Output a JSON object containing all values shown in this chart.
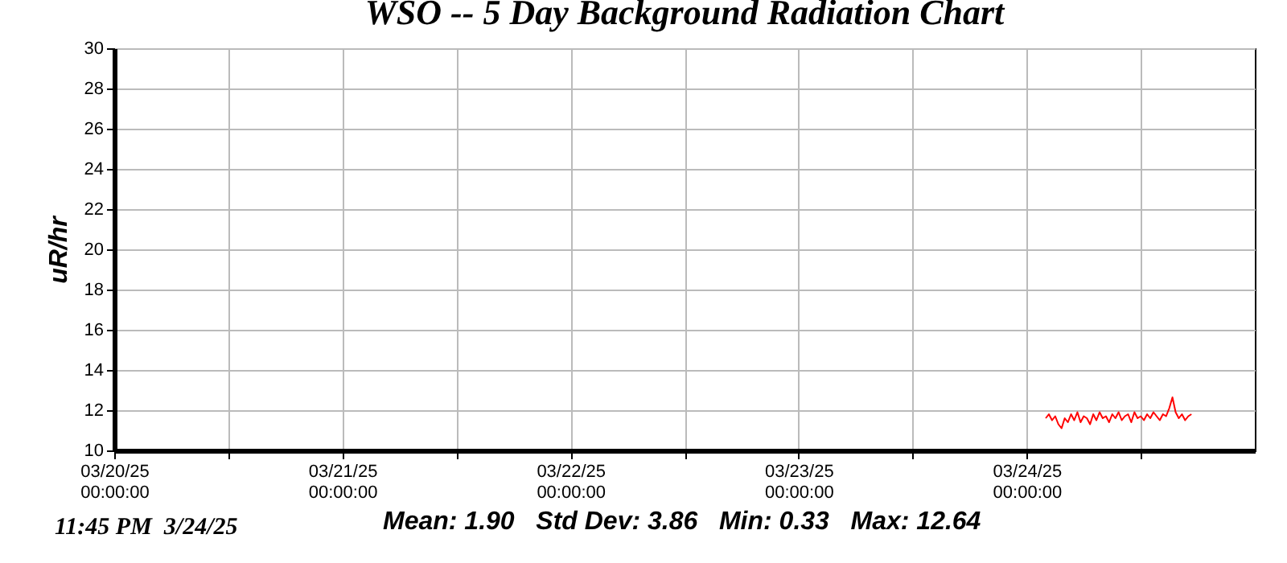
{
  "chart_data": {
    "type": "line",
    "title": "WSO -- 5 Day Background Radiation Chart",
    "ylabel": "uR/hr",
    "annotations": [
      "11:45 PM  3/24/25",
      "Mean: 1.90   Std Dev: 3.86   Min: 0.33   Max: 12.64"
    ],
    "x": [
      "--03-24T02:00",
      "--03-24T02:20",
      "--03-24T02:40",
      "--03-24T03:00",
      "--03-24T03:20",
      "--03-24T03:40",
      "--03-24T04:00",
      "--03-24T04:20",
      "--03-24T04:40",
      "--03-24T05:00",
      "--03-24T05:20",
      "--03-24T05:40",
      "--03-24T06:00",
      "--03-24T06:20",
      "--03-24T06:40",
      "--03-24T07:00",
      "--03-24T07:20",
      "--03-24T07:40",
      "--03-24T08:00",
      "--03-24T08:20",
      "--03-24T08:40",
      "--03-24T09:00",
      "--03-24T09:20",
      "--03-24T09:40",
      "--03-24T10:00",
      "--03-24T10:20",
      "--03-24T10:40",
      "--03-24T11:00",
      "--03-24T11:20",
      "--03-24T11:40",
      "--03-24T12:00",
      "--03-24T12:20",
      "--03-24T12:40",
      "--03-24T13:00",
      "--03-24T13:20",
      "--03-24T13:40",
      "--03-24T14:00",
      "--03-24T14:20",
      "--03-24T14:40",
      "--03-24T15:00",
      "--03-24T15:20",
      "--03-24T15:40",
      "--03-24T16:00",
      "--03-24T16:20",
      "--03-24T16:40",
      "--03-24T17:00",
      "--03-24T17:20"
    ],
    "series": [
      {
        "color": "#ff0000",
        "values": [
          11.6,
          11.8,
          11.5,
          11.7,
          11.3,
          11.1,
          11.6,
          11.4,
          11.8,
          11.5,
          11.9,
          11.4,
          11.7,
          11.6,
          11.3,
          11.8,
          11.5,
          11.9,
          11.6,
          11.7,
          11.4,
          11.8,
          11.6,
          11.9,
          11.5,
          11.7,
          11.8,
          11.4,
          11.9,
          11.6,
          11.7,
          11.5,
          11.8,
          11.6,
          11.9,
          11.7,
          11.5,
          11.8,
          11.7,
          12.1,
          12.64,
          11.9,
          11.6,
          11.8,
          11.5,
          11.7,
          11.8
        ]
      }
    ],
    "xlim": [
      "--03-20T00:00",
      "--03-25T00:00"
    ],
    "xticks": [
      {
        "value": "--03-20T00:00",
        "label": "03/20/25 00:00:00"
      },
      {
        "value": "--03-20T12:00",
        "label": null
      },
      {
        "value": "--03-21T00:00",
        "label": "03/21/25 00:00:00"
      },
      {
        "value": "--03-21T12:00",
        "label": null
      },
      {
        "value": "--03-22T00:00",
        "label": "03/22/25 00:00:00"
      },
      {
        "value": "--03-22T12:00",
        "label": null
      },
      {
        "value": "--03-23T00:00",
        "label": "03/23/25 00:00:00"
      },
      {
        "value": "--03-23T12:00",
        "label": null
      },
      {
        "value": "--03-24T00:00",
        "label": "03/24/25 00:00:00"
      },
      {
        "value": "--03-24T12:00",
        "label": null
      }
    ],
    "ylim": [
      10,
      30
    ],
    "yticks": [
      10,
      12,
      14,
      16,
      18,
      20,
      22,
      24,
      26,
      28,
      30
    ],
    "grid": true,
    "marker": "none",
    "line_style": "solid"
  }
}
